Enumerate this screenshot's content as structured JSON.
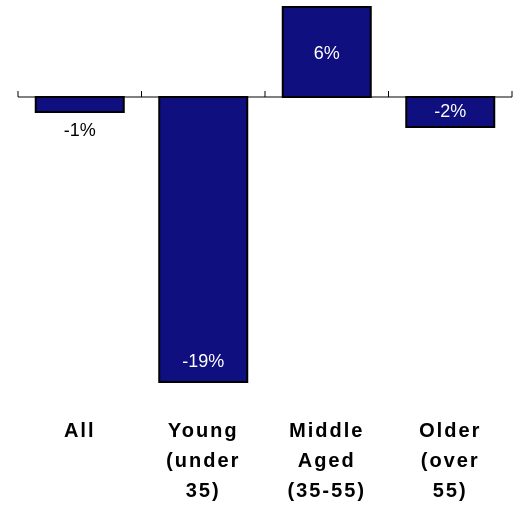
{
  "chart_data": {
    "type": "bar",
    "categories": [
      [
        "All"
      ],
      [
        "Young",
        "(under",
        "35)"
      ],
      [
        "Middle",
        "Aged",
        "(35-55)"
      ],
      [
        "Older",
        "(over",
        "55)"
      ]
    ],
    "values": [
      -1,
      -19,
      6,
      -2
    ],
    "value_labels": [
      "-1%",
      "-19%",
      "6%",
      "-2%"
    ],
    "value_label_placement": [
      "outside",
      "inside",
      "inside",
      "inside"
    ],
    "ylim": [
      -19,
      6
    ],
    "grid": false,
    "legend": "none",
    "title": "",
    "xlabel": "",
    "ylabel": "",
    "colors": {
      "bar_fill": "#0f0f7f",
      "bar_stroke": "#000000"
    }
  }
}
